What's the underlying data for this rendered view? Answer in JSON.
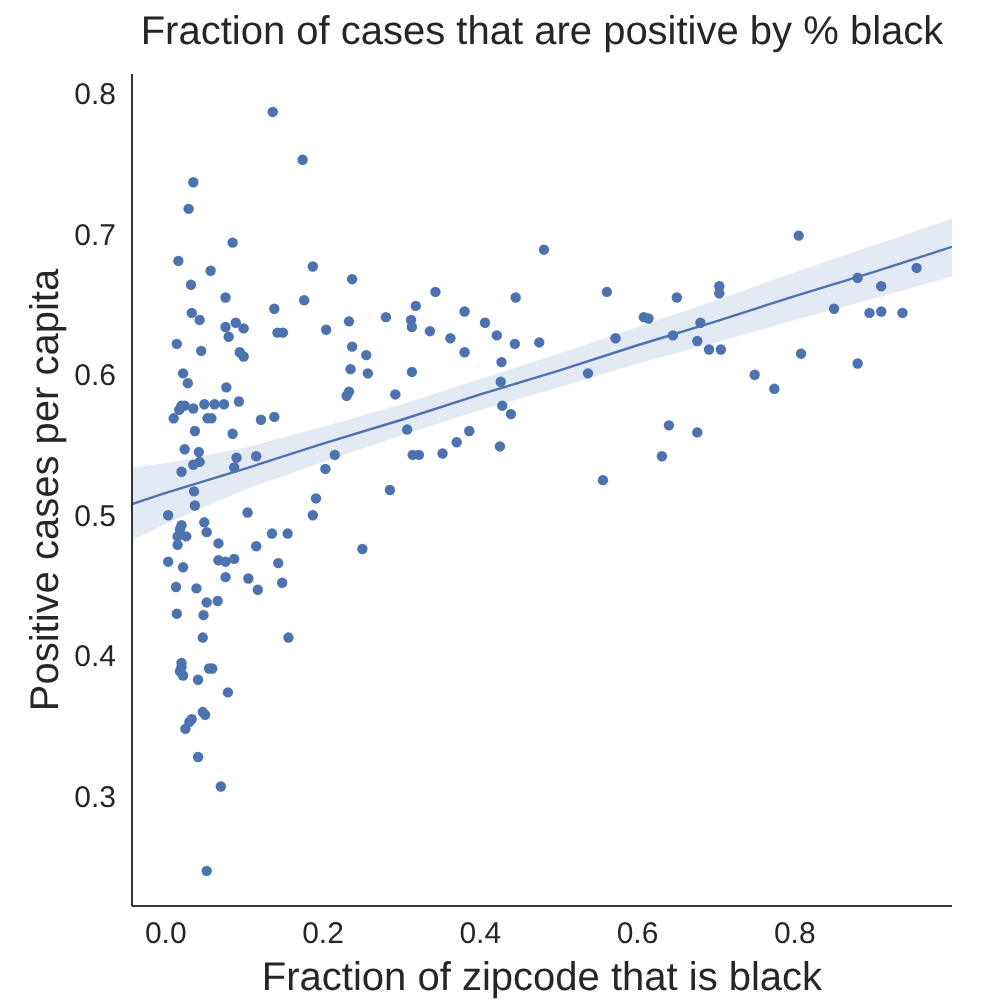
{
  "chart_data": {
    "type": "scatter",
    "title": "Fraction of cases that are positive by % black",
    "xlabel": "Fraction of zipcode that is black",
    "ylabel": "Positive cases per capita",
    "xlim": [
      -0.043,
      1.0
    ],
    "xticks": [
      {
        "value": 0,
        "label": "0.0"
      },
      0.2,
      0.4,
      0.6,
      0.8
    ],
    "ylim": [
      0.222,
      0.814
    ],
    "yticks": [
      0.3,
      0.4,
      0.5,
      0.6,
      0.7,
      0.8
    ],
    "series": [
      {
        "type": "scatter",
        "marker": "circle",
        "color": "#4c72b0",
        "x": [
          0.136,
          0.174,
          0.035,
          0.029,
          0.085,
          0.016,
          0.057,
          0.187,
          0.237,
          0.032,
          0.076,
          0.176,
          0.138,
          0.033,
          0.043,
          0.28,
          0.076,
          0.089,
          0.099,
          0.08,
          0.142,
          0.149,
          0.204,
          0.233,
          0.014,
          0.237,
          0.045,
          0.094,
          0.099,
          0.255,
          0.235,
          0.022,
          0.257,
          0.028,
          0.077,
          0.23,
          0.233,
          0.02,
          0.024,
          0.017,
          0.01,
          0.035,
          0.049,
          0.062,
          0.074,
          0.093,
          0.053,
          0.058,
          0.121,
          0.138,
          0.037,
          0.085,
          0.024,
          0.042,
          0.215,
          0.09,
          0.115,
          0.02,
          0.043,
          0.035,
          0.087,
          0.203,
          0.036,
          0.037,
          0.003,
          0.285,
          0.191,
          0.187,
          0.104,
          0.049,
          0.02,
          0.018,
          0.052,
          0.015,
          0.026,
          0.135,
          0.155,
          0.015,
          0.067,
          0.115,
          0.25,
          0.003,
          0.022,
          0.067,
          0.076,
          0.087,
          0.143,
          0.076,
          0.105,
          0.148,
          0.117,
          0.013,
          0.039,
          0.052,
          0.066,
          0.014,
          0.048,
          0.047,
          0.156,
          0.02,
          0.02,
          0.018,
          0.022,
          0.055,
          0.059,
          0.041,
          0.079,
          0.047,
          0.05,
          0.033,
          0.03,
          0.025,
          0.041,
          0.07,
          0.052,
          0.481,
          0.343,
          0.561,
          0.65,
          0.445,
          0.318,
          0.312,
          0.313,
          0.38,
          0.406,
          0.336,
          0.421,
          0.362,
          0.444,
          0.475,
          0.608,
          0.614,
          0.572,
          0.645,
          0.38,
          0.313,
          0.427,
          0.426,
          0.537,
          0.292,
          0.428,
          0.439,
          0.307,
          0.386,
          0.37,
          0.314,
          0.322,
          0.352,
          0.425,
          0.64,
          0.631,
          0.556,
          0.805,
          0.704,
          0.704,
          0.68,
          0.676,
          0.691,
          0.706,
          0.88,
          0.955,
          0.91,
          0.85,
          0.895,
          0.91,
          0.937,
          0.808,
          0.88,
          0.749,
          0.774,
          0.676
        ],
        "values": [
          0.787,
          0.753,
          0.737,
          0.718,
          0.694,
          0.681,
          0.674,
          0.677,
          0.668,
          0.664,
          0.655,
          0.653,
          0.647,
          0.644,
          0.639,
          0.641,
          0.634,
          0.637,
          0.633,
          0.627,
          0.63,
          0.63,
          0.632,
          0.638,
          0.622,
          0.62,
          0.617,
          0.616,
          0.613,
          0.614,
          0.604,
          0.601,
          0.601,
          0.594,
          0.591,
          0.585,
          0.588,
          0.578,
          0.578,
          0.575,
          0.569,
          0.576,
          0.579,
          0.579,
          0.579,
          0.581,
          0.569,
          0.569,
          0.568,
          0.57,
          0.56,
          0.558,
          0.547,
          0.545,
          0.543,
          0.541,
          0.542,
          0.531,
          0.538,
          0.536,
          0.534,
          0.533,
          0.517,
          0.507,
          0.5,
          0.518,
          0.512,
          0.5,
          0.502,
          0.495,
          0.493,
          0.49,
          0.488,
          0.485,
          0.485,
          0.487,
          0.487,
          0.479,
          0.48,
          0.478,
          0.476,
          0.467,
          0.463,
          0.468,
          0.467,
          0.469,
          0.466,
          0.456,
          0.455,
          0.452,
          0.447,
          0.449,
          0.448,
          0.438,
          0.439,
          0.43,
          0.429,
          0.413,
          0.413,
          0.395,
          0.392,
          0.389,
          0.386,
          0.391,
          0.391,
          0.383,
          0.374,
          0.36,
          0.358,
          0.355,
          0.353,
          0.348,
          0.328,
          0.307,
          0.247,
          0.689,
          0.659,
          0.659,
          0.655,
          0.655,
          0.649,
          0.639,
          0.634,
          0.645,
          0.637,
          0.631,
          0.628,
          0.626,
          0.622,
          0.623,
          0.641,
          0.64,
          0.626,
          0.628,
          0.616,
          0.602,
          0.609,
          0.595,
          0.601,
          0.586,
          0.578,
          0.572,
          0.561,
          0.56,
          0.552,
          0.543,
          0.543,
          0.544,
          0.549,
          0.564,
          0.542,
          0.525,
          0.699,
          0.663,
          0.658,
          0.637,
          0.624,
          0.618,
          0.618,
          0.669,
          0.676,
          0.663,
          0.647,
          0.644,
          0.645,
          0.644,
          0.615,
          0.608,
          0.6,
          0.59,
          0.559
        ]
      },
      {
        "type": "line",
        "color": "#4c72b0",
        "x": [
          -0.043,
          0.0,
          0.1,
          0.2,
          0.3,
          0.4,
          0.5,
          0.6,
          0.7,
          0.8,
          0.9,
          1.0
        ],
        "values": [
          0.508,
          0.516,
          0.533,
          0.551,
          0.568,
          0.586,
          0.603,
          0.621,
          0.638,
          0.656,
          0.673,
          0.691
        ],
        "lower": [
          0.482,
          0.494,
          0.518,
          0.538,
          0.557,
          0.575,
          0.591,
          0.608,
          0.623,
          0.639,
          0.654,
          0.67
        ],
        "upper": [
          0.534,
          0.537,
          0.548,
          0.563,
          0.579,
          0.597,
          0.615,
          0.634,
          0.653,
          0.673,
          0.692,
          0.711
        ]
      }
    ]
  }
}
